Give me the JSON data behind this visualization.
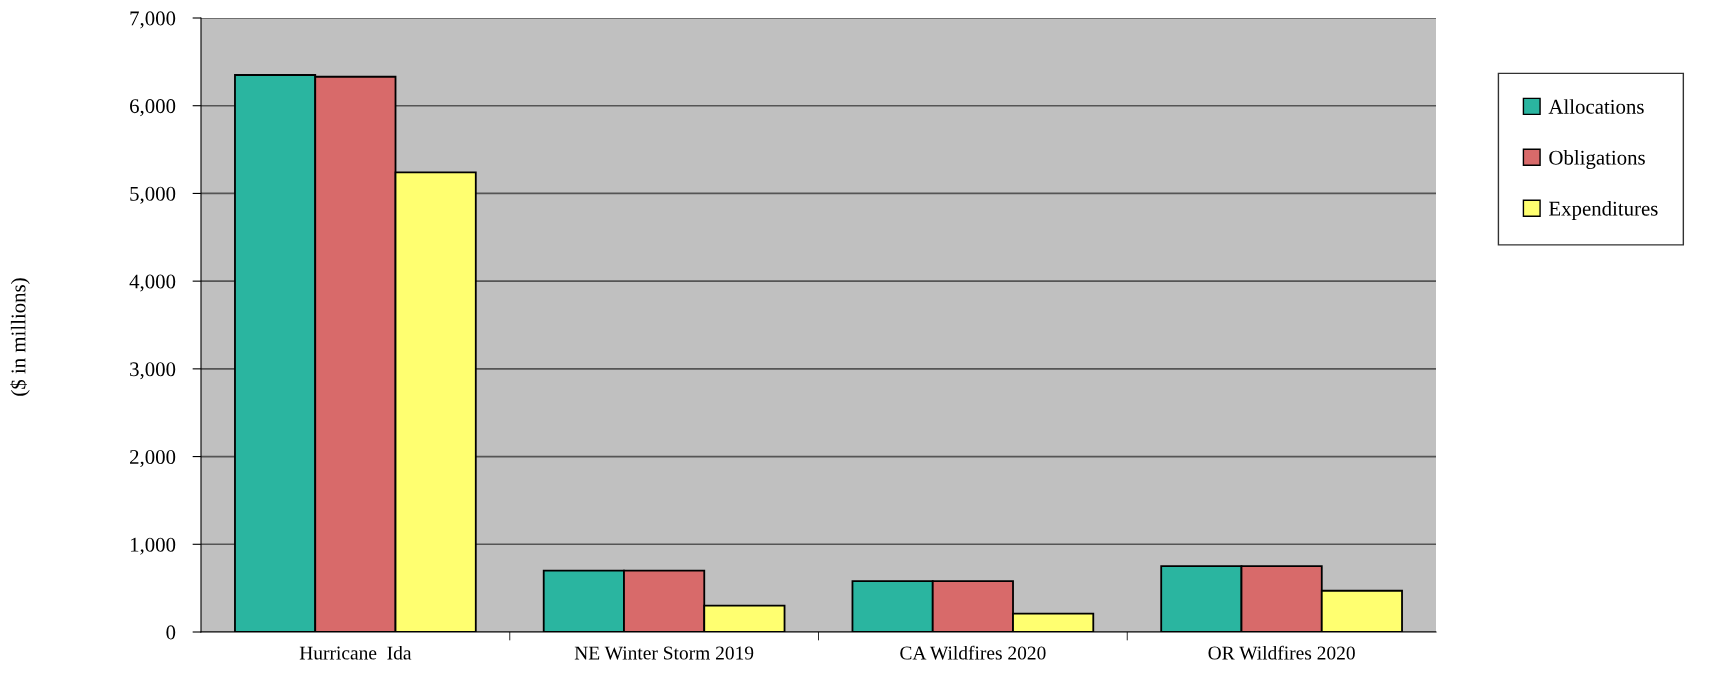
{
  "chart_data": {
    "type": "bar",
    "ylabel": "($ in millions)",
    "categories": [
      "Hurricane  Ida",
      "NE Winter Storm 2019",
      "CA Wildfires 2020",
      "OR Wildfires 2020"
    ],
    "series": [
      {
        "name": "Allocations",
        "color": "#2ab5a0",
        "values": [
          6350,
          700,
          580,
          750
        ]
      },
      {
        "name": "Obligations",
        "color": "#d86a6a",
        "values": [
          6330,
          700,
          580,
          750
        ]
      },
      {
        "name": "Expenditures",
        "color": "#ffff70",
        "values": [
          5240,
          300,
          210,
          470
        ]
      }
    ],
    "ylim": [
      0,
      7000
    ],
    "yticks": [
      {
        "value": 0,
        "label": "0"
      },
      {
        "value": 1000,
        "label": "1,000"
      },
      {
        "value": 2000,
        "label": "2,000"
      },
      {
        "value": 3000,
        "label": "3,000"
      },
      {
        "value": 4000,
        "label": "4,000"
      },
      {
        "value": 5000,
        "label": "5,000"
      },
      {
        "value": 6000,
        "label": "6,000"
      },
      {
        "value": 7000,
        "label": "7,000"
      }
    ],
    "grid": "y",
    "legend": "top right"
  }
}
